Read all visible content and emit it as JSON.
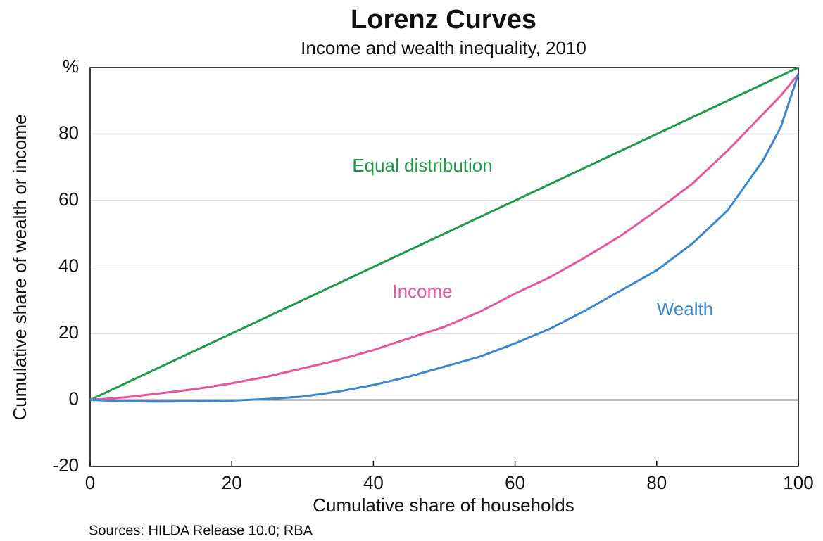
{
  "chart_data": {
    "type": "line",
    "title": "Lorenz Curves",
    "subtitle": "Income and wealth inequality, 2010",
    "x_label": "Cumulative share of households",
    "y_label": "Cumulative share of wealth or income",
    "source": "Sources: HILDA Release 10.0; RBA",
    "x": [
      0,
      5,
      10,
      15,
      20,
      25,
      30,
      35,
      40,
      45,
      50,
      55,
      60,
      65,
      70,
      75,
      80,
      85,
      90,
      95,
      97.5,
      100
    ],
    "series": [
      {
        "name": "Equal distribution",
        "color": "#1e9a48",
        "values": [
          0,
          5,
          10,
          15,
          20,
          25,
          30,
          35,
          40,
          45,
          50,
          55,
          60,
          65,
          70,
          75,
          80,
          85,
          90,
          95,
          97.5,
          100
        ]
      },
      {
        "name": "Income",
        "color": "#e9559d",
        "values": [
          0,
          0.8,
          2,
          3.3,
          5,
          7,
          9.5,
          12,
          15,
          18.5,
          22,
          26.5,
          32,
          37,
          43,
          49.5,
          57,
          65,
          75,
          86,
          91.5,
          98
        ]
      },
      {
        "name": "Wealth",
        "color": "#3a86d0",
        "values": [
          0,
          -0.4,
          -0.5,
          -0.4,
          -0.2,
          0.3,
          1,
          2.5,
          4.5,
          7,
          10,
          13,
          17,
          21.5,
          27,
          33,
          39,
          47,
          57,
          72,
          82,
          98
        ]
      }
    ],
    "xlim": [
      0,
      100
    ],
    "xticks": [
      0,
      20,
      40,
      60,
      80,
      100
    ],
    "ylim": [
      -20,
      100
    ],
    "yticks": [
      -20,
      0,
      20,
      40,
      60,
      80,
      {
        "value": 100,
        "label": "%"
      }
    ],
    "grid": true
  }
}
